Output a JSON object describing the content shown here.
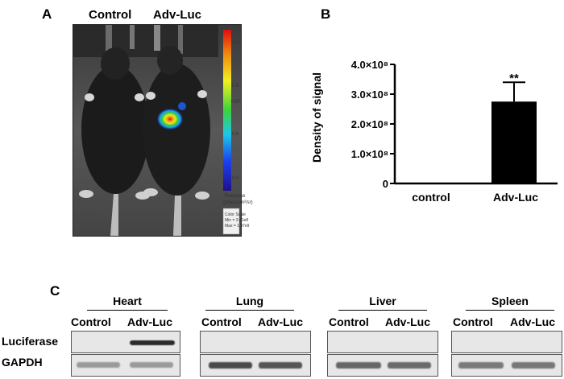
{
  "panel_a": {
    "letter": "A",
    "groups": [
      "Control",
      "Adv-Luc"
    ],
    "scale": {
      "tick_values": [
        "1.0",
        "0.8",
        "0.6",
        "0.4"
      ],
      "exponent_label": "×10⁹",
      "unit_line1": "Radiance",
      "unit_line2": "(p/sec/cm²/sr)",
      "info_line1": "Color Scale",
      "info_line2": "Min = 3.41e8",
      "info_line3": "Max = 1.07e9"
    }
  },
  "panel_b": {
    "letter": "B",
    "significance": "**",
    "ytick_labels": [
      "0",
      "1.0×10⁸",
      "2.0×10⁸",
      "3.0×10⁸",
      "4.0×10⁸"
    ]
  },
  "chart_data": {
    "type": "bar",
    "categories": [
      "control",
      "Adv-Luc"
    ],
    "values": [
      0,
      275000000
    ],
    "error": [
      0,
      65000000
    ],
    "ylabel": "Density of signal",
    "ylim": [
      0,
      400000000
    ],
    "bar_colors": [
      "#000000",
      "#000000"
    ]
  },
  "panel_c": {
    "letter": "C",
    "row_labels": [
      "Luciferase",
      "GAPDH"
    ],
    "lanes": [
      "Control",
      "Adv-Luc"
    ],
    "tissues": [
      {
        "name": "Heart",
        "luciferase": [
          0,
          1
        ]
      },
      {
        "name": "Lung",
        "luciferase": [
          0,
          0
        ]
      },
      {
        "name": "Liver",
        "luciferase": [
          0,
          0
        ]
      },
      {
        "name": "Spleen",
        "luciferase": [
          0,
          0
        ]
      }
    ]
  }
}
